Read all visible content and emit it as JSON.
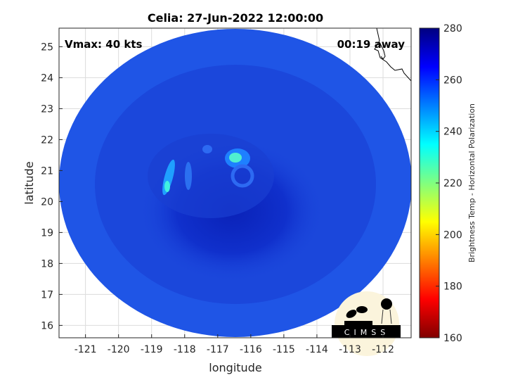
{
  "chart_data": {
    "type": "heatmap",
    "title": "Celia: 27-Jun-2022 12:00:00",
    "xlabel": "longitude",
    "ylabel": "latitude",
    "xlim": [
      -121.8,
      -111.15
    ],
    "ylim": [
      15.6,
      25.6
    ],
    "xticks": [
      -121,
      -120,
      -119,
      -118,
      -117,
      -116,
      -115,
      -114,
      -113,
      -112
    ],
    "yticks": [
      16,
      17,
      18,
      19,
      20,
      21,
      22,
      23,
      24,
      25
    ],
    "grid": true,
    "annotations": {
      "left": "Vmax: 40 kts",
      "right": "00:19 away"
    },
    "colorbar": {
      "label": "Brightness Temp - Horizontal Polarization",
      "range": [
        160,
        280
      ],
      "ticks": [
        160,
        180,
        200,
        220,
        240,
        260,
        280
      ],
      "colormap": "jet"
    },
    "features": [
      {
        "name": "warm background",
        "value": 262
      },
      {
        "name": "cold core center",
        "lon": -116.8,
        "lat": 19.3,
        "value": 272
      },
      {
        "name": "convective band",
        "lon": -118.4,
        "lat": 20.6,
        "value": 240
      },
      {
        "name": "convective cluster",
        "lon": -116.3,
        "lat": 21.4,
        "value": 238
      }
    ],
    "logo": "CIMSS"
  }
}
